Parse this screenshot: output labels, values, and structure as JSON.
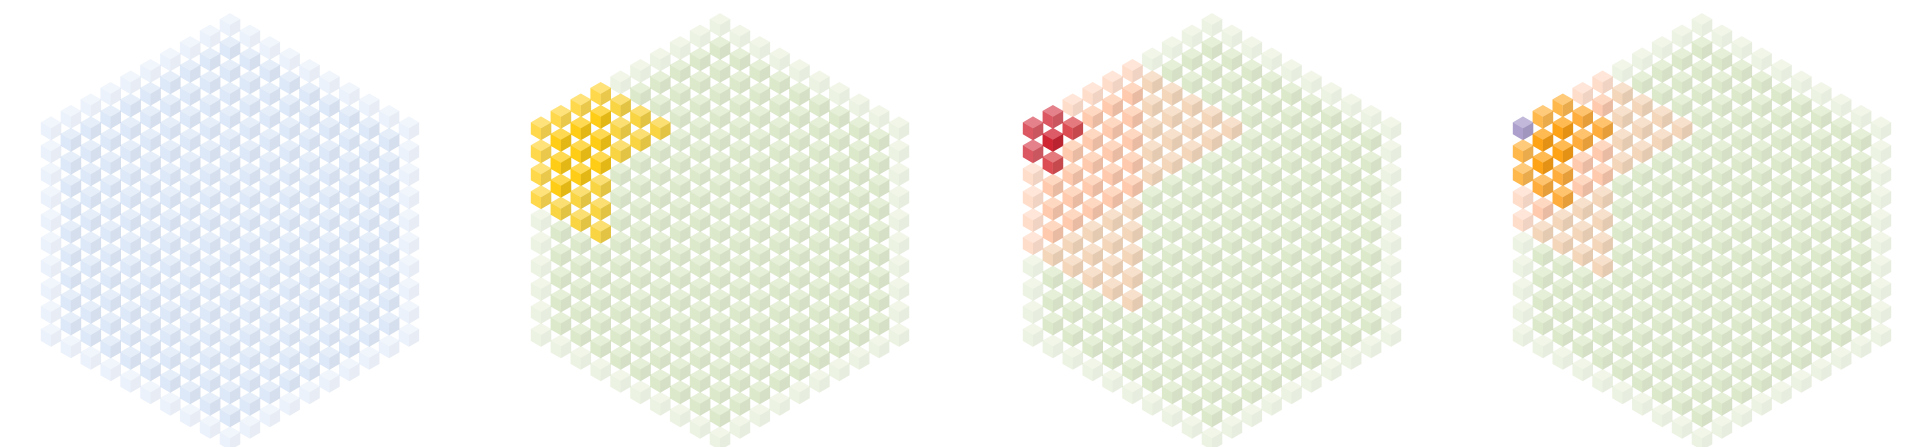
{
  "figure": {
    "panel_count": 4,
    "panels": [
      {
        "id": "panel-1",
        "description_colors": {
          "base": "#aac6ec"
        },
        "highlight_regions": []
      },
      {
        "id": "panel-2",
        "description_colors": {
          "base": "#a9c97c"
        },
        "highlight_regions": [
          {
            "name": "yellow-block",
            "color": "#ffc800",
            "extent": [
              0.0,
              0.42
            ]
          }
        ]
      },
      {
        "id": "panel-3",
        "description_colors": {
          "base": "#a9c97c"
        },
        "highlight_regions": [
          {
            "name": "peach-block",
            "color": "#ffb48c",
            "extent": [
              0.0,
              0.55
            ]
          },
          {
            "name": "red-block",
            "color": "#cc1020",
            "extent": [
              0.0,
              0.22
            ]
          }
        ]
      },
      {
        "id": "panel-4",
        "description_colors": {
          "base": "#a9c97c"
        },
        "highlight_regions": [
          {
            "name": "peach-block",
            "color": "#ffb48c",
            "extent": [
              0.0,
              0.5
            ]
          },
          {
            "name": "orange-block",
            "color": "#ff9a00",
            "extent": [
              0.0,
              0.25
            ]
          },
          {
            "name": "purple-cube",
            "color": "#8a78b8",
            "extent": [
              0.0,
              0.06
            ]
          }
        ]
      }
    ]
  }
}
